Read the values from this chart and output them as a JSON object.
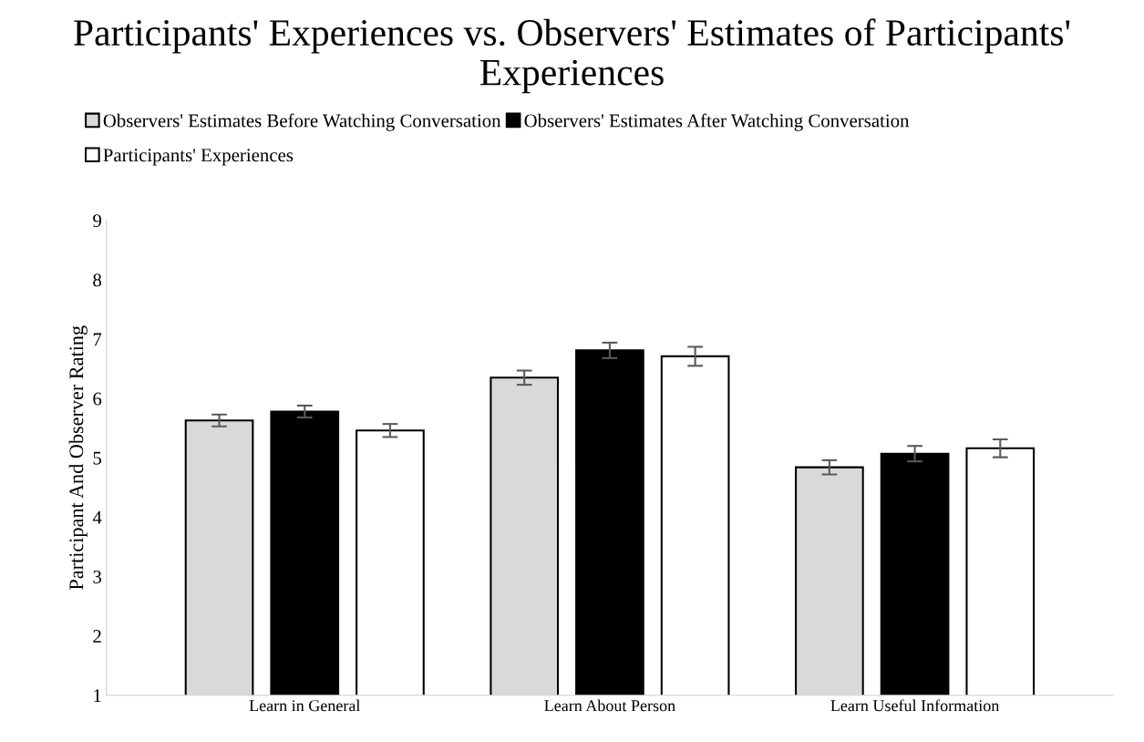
{
  "chart_data": {
    "type": "bar",
    "title": "Participants' Experiences vs. Observers' Estimates of Participants' Experiences",
    "ylabel": "Participant And Observer Rating",
    "categories": [
      "Learn in General",
      "Learn About Person",
      "Learn Useful Information"
    ],
    "series": [
      {
        "name": "Observers' Estimates Before Watching Conversation",
        "color": "#d9d9d9",
        "values": [
          5.63,
          6.35,
          4.84
        ],
        "errors": [
          0.1,
          0.12,
          0.12
        ]
      },
      {
        "name": "Observers' Estimates After Watching Conversation",
        "color": "#000000",
        "values": [
          5.78,
          6.81,
          5.07
        ],
        "errors": [
          0.1,
          0.13,
          0.13
        ]
      },
      {
        "name": "Participants' Experiences",
        "color": "#ffffff",
        "values": [
          5.46,
          6.71,
          5.16
        ],
        "errors": [
          0.11,
          0.16,
          0.15
        ]
      }
    ],
    "ylim": [
      1,
      9
    ],
    "yticks": [
      1,
      2,
      3,
      4,
      5,
      6,
      7,
      8,
      9
    ],
    "grid": false,
    "legend": "top"
  }
}
